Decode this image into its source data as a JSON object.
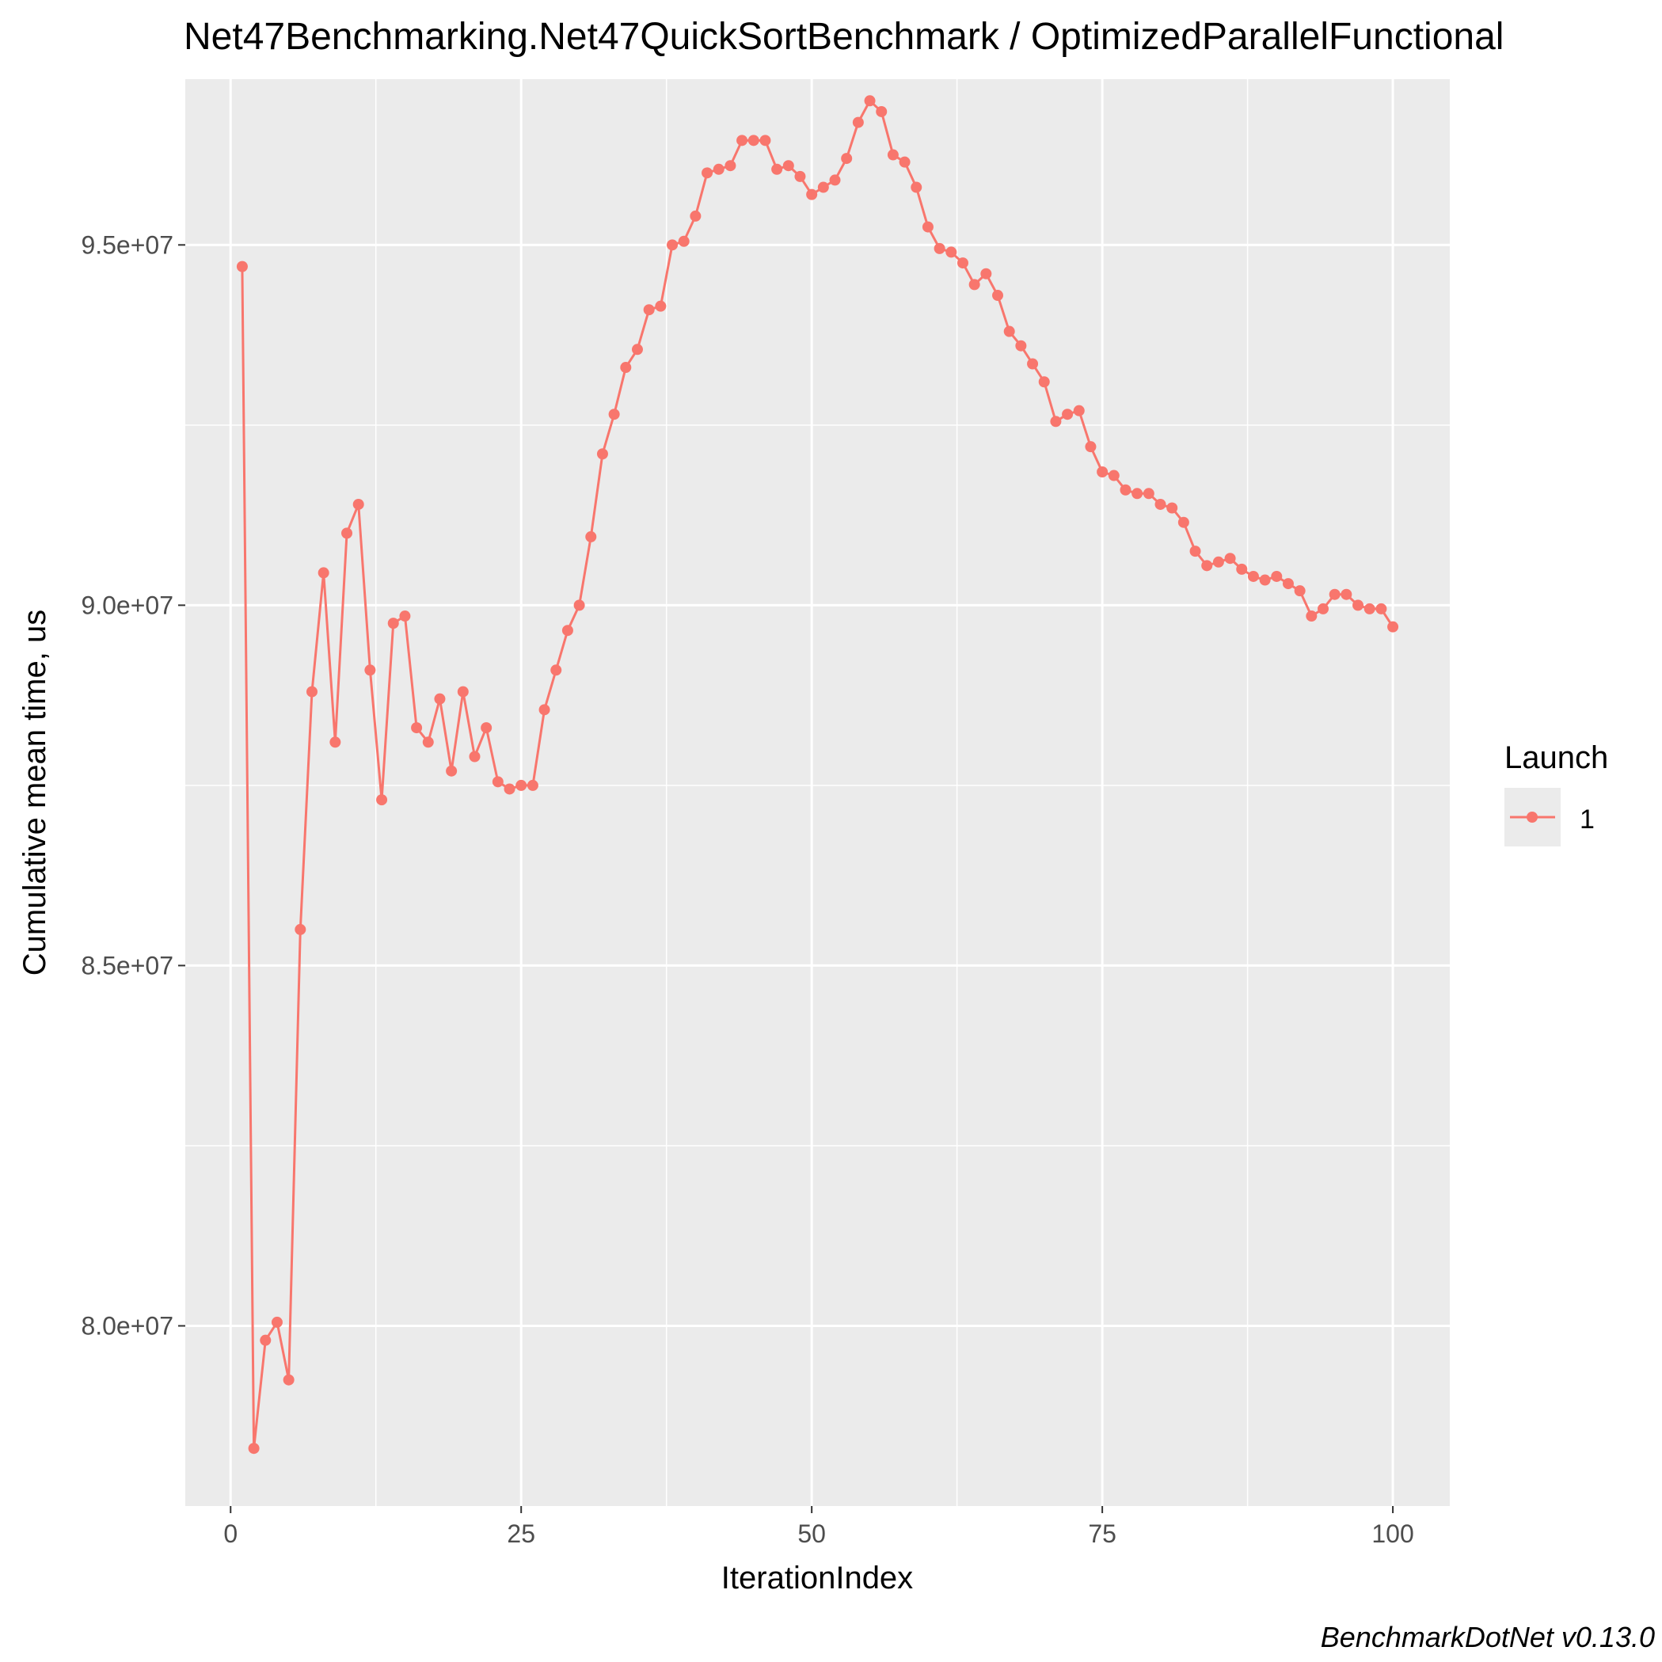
{
  "chart_data": {
    "type": "line",
    "title": "Net47Benchmarking.Net47QuickSortBenchmark / OptimizedParallelFunctional",
    "xlabel": "IterationIndex",
    "ylabel": "Cumulative mean time, us",
    "caption": "BenchmarkDotNet v0.13.0",
    "xlim": [
      -3.9,
      104.9
    ],
    "ylim": [
      77500000,
      97300000
    ],
    "x_ticks": [
      0,
      25,
      50,
      75,
      100
    ],
    "x_tick_labels": [
      "0",
      "25",
      "50",
      "75",
      "100"
    ],
    "y_ticks": [
      80000000,
      85000000,
      90000000,
      95000000
    ],
    "y_tick_labels": [
      "8.0e+07",
      "8.5e+07",
      "9.0e+07",
      "9.5e+07"
    ],
    "grid": true,
    "legend": {
      "title": "Launch",
      "position": "right"
    },
    "colors": {
      "series": "#F8766D",
      "panel": "#EBEBEB",
      "grid": "#FFFFFF",
      "tick_text": "#4D4D4D"
    },
    "series": [
      {
        "name": "1",
        "x": [
          1,
          2,
          3,
          4,
          5,
          6,
          7,
          8,
          9,
          10,
          11,
          12,
          13,
          14,
          15,
          16,
          17,
          18,
          19,
          20,
          21,
          22,
          23,
          24,
          25,
          26,
          27,
          28,
          29,
          30,
          31,
          32,
          33,
          34,
          35,
          36,
          37,
          38,
          39,
          40,
          41,
          42,
          43,
          44,
          45,
          46,
          47,
          48,
          49,
          50,
          51,
          52,
          53,
          54,
          55,
          56,
          57,
          58,
          59,
          60,
          61,
          62,
          63,
          64,
          65,
          66,
          67,
          68,
          69,
          70,
          71,
          72,
          73,
          74,
          75,
          76,
          77,
          78,
          79,
          80,
          81,
          82,
          83,
          84,
          85,
          86,
          87,
          88,
          89,
          90,
          91,
          92,
          93,
          94,
          95,
          96,
          97,
          98,
          99,
          100
        ],
        "y": [
          94700000,
          78300000,
          79800000,
          80050000,
          79250000,
          85500000,
          88800000,
          90450000,
          88100000,
          91000000,
          91400000,
          89100000,
          87300000,
          89750000,
          89850000,
          88300000,
          88100000,
          88700000,
          87700000,
          88800000,
          87900000,
          88300000,
          87550000,
          87450000,
          87500000,
          87500000,
          88550000,
          89100000,
          89650000,
          90000000,
          90950000,
          92100000,
          92650000,
          93300000,
          93550000,
          94100000,
          94150000,
          95000000,
          95050000,
          95400000,
          96000000,
          96050000,
          96100000,
          96450000,
          96450000,
          96450000,
          96050000,
          96100000,
          95950000,
          95700000,
          95800000,
          95900000,
          96200000,
          96700000,
          97000000,
          96850000,
          96250000,
          96150000,
          95800000,
          95250000,
          94950000,
          94900000,
          94750000,
          94450000,
          94600000,
          94300000,
          93800000,
          93600000,
          93350000,
          93100000,
          92550000,
          92650000,
          92700000,
          92200000,
          91850000,
          91800000,
          91600000,
          91550000,
          91550000,
          91400000,
          91350000,
          91150000,
          90750000,
          90550000,
          90600000,
          90650000,
          90500000,
          90400000,
          90350000,
          90400000,
          90300000,
          90200000,
          89850000,
          89950000,
          90150000,
          90150000,
          90000000,
          89950000,
          89950000,
          89700000
        ]
      }
    ]
  }
}
